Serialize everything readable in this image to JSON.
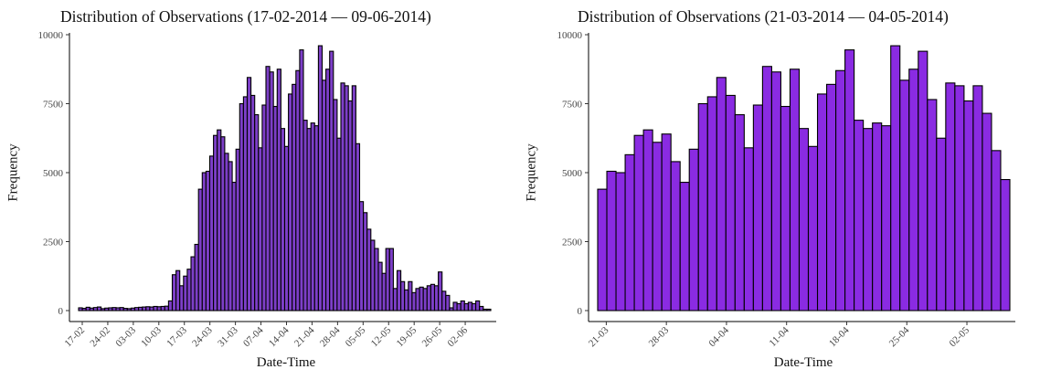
{
  "chart_data": [
    {
      "type": "bar",
      "title": "Distribution of Observations (17-02-2014 — 09-06-2014)",
      "xlabel": "Date-Time",
      "ylabel": "Frequency",
      "ylim": [
        0,
        10000
      ],
      "yticks": [
        0,
        2500,
        5000,
        7500,
        10000
      ],
      "x_range": [
        "2014-02-16",
        "2014-06-09"
      ],
      "xticks": [
        {
          "date": "2014-02-17",
          "label": "17-02"
        },
        {
          "date": "2014-02-24",
          "label": "24-02"
        },
        {
          "date": "2014-03-03",
          "label": "03-03"
        },
        {
          "date": "2014-03-10",
          "label": "10-03"
        },
        {
          "date": "2014-03-17",
          "label": "17-03"
        },
        {
          "date": "2014-03-24",
          "label": "24-03"
        },
        {
          "date": "2014-03-31",
          "label": "31-03"
        },
        {
          "date": "2014-04-07",
          "label": "07-04"
        },
        {
          "date": "2014-04-14",
          "label": "14-04"
        },
        {
          "date": "2014-04-21",
          "label": "21-04"
        },
        {
          "date": "2014-04-28",
          "label": "28-04"
        },
        {
          "date": "2014-05-05",
          "label": "05-05"
        },
        {
          "date": "2014-05-12",
          "label": "12-05"
        },
        {
          "date": "2014-05-19",
          "label": "19-05"
        },
        {
          "date": "2014-05-26",
          "label": "26-05"
        },
        {
          "date": "2014-06-02",
          "label": "02-06"
        }
      ],
      "fill": "#7d3fc8",
      "edge": "#000000",
      "values": [
        100,
        80,
        120,
        90,
        110,
        130,
        70,
        90,
        100,
        110,
        100,
        110,
        80,
        70,
        90,
        110,
        120,
        130,
        140,
        130,
        150,
        140,
        150,
        160,
        350,
        1300,
        1450,
        900,
        1250,
        1500,
        1950,
        2400,
        4400,
        5000,
        5050,
        5600,
        6350,
        6550,
        6300,
        5700,
        5400,
        4650,
        5850,
        7500,
        7750,
        8450,
        7800,
        7100,
        5900,
        7450,
        8850,
        8650,
        7400,
        8750,
        6600,
        5950,
        7850,
        8200,
        8700,
        9450,
        6900,
        6600,
        6800,
        6700,
        9600,
        8350,
        8750,
        9400,
        7650,
        6250,
        8250,
        8150,
        7600,
        8150,
        6050,
        3950,
        3550,
        2950,
        2550,
        2250,
        1750,
        1350,
        2250,
        2250,
        800,
        1450,
        1050,
        750,
        1050,
        650,
        800,
        850,
        800,
        900,
        950,
        900,
        1400,
        700,
        550,
        100,
        300,
        250,
        350,
        250,
        300,
        250,
        350,
        150,
        50,
        50
      ]
    },
    {
      "type": "bar",
      "title": "Distribution of Observations (21-03-2014 — 04-05-2014)",
      "xlabel": "Date-Time",
      "ylabel": "Frequency",
      "ylim": [
        0,
        10000
      ],
      "yticks": [
        0,
        2500,
        5000,
        7500,
        10000
      ],
      "x_range": [
        "2014-03-20",
        "2014-05-07"
      ],
      "xticks": [
        {
          "date": "2014-03-21",
          "label": "21-03"
        },
        {
          "date": "2014-03-28",
          "label": "28-03"
        },
        {
          "date": "2014-04-04",
          "label": "04-04"
        },
        {
          "date": "2014-04-11",
          "label": "11-04"
        },
        {
          "date": "2014-04-18",
          "label": "18-04"
        },
        {
          "date": "2014-04-25",
          "label": "25-04"
        },
        {
          "date": "2014-05-02",
          "label": "02-05"
        }
      ],
      "fill": "#8a2be2",
      "edge": "#000000",
      "values": [
        4400,
        5050,
        5000,
        5650,
        6350,
        6550,
        6100,
        6400,
        5400,
        4650,
        5850,
        7500,
        7750,
        8450,
        7800,
        7100,
        5900,
        7450,
        8850,
        8650,
        7400,
        8750,
        6600,
        5950,
        7850,
        8200,
        8700,
        9450,
        6900,
        6600,
        6800,
        6700,
        9600,
        8350,
        8750,
        9400,
        7650,
        6250,
        8250,
        8150,
        7600,
        8150,
        7150,
        5800,
        4750
      ]
    }
  ]
}
